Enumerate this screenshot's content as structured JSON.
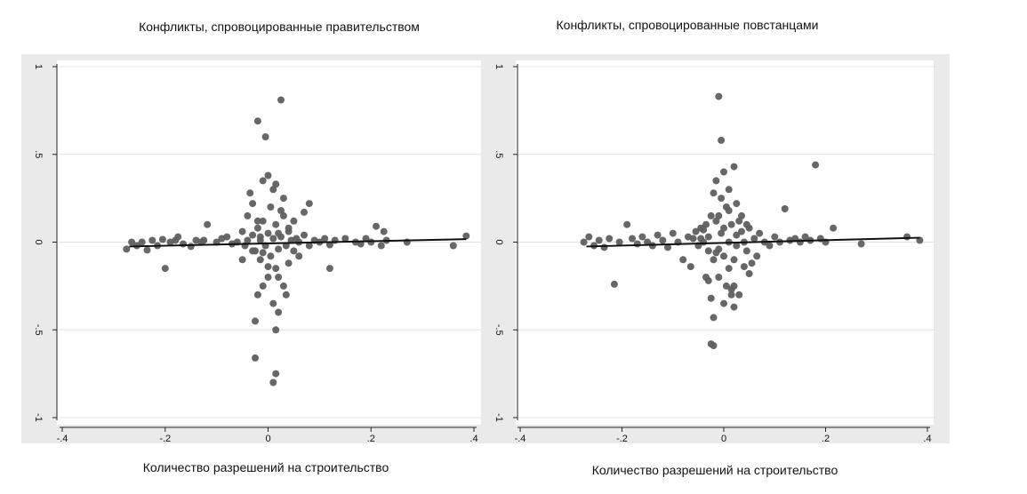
{
  "chart_data": [
    {
      "type": "scatter",
      "title": "Конфликты, спровоцированные правительством",
      "xlabel": "Количество разрешений на строительство",
      "ylabel": "",
      "xlim": [
        -0.4,
        0.4
      ],
      "ylim": [
        -1,
        1
      ],
      "xticks": [
        -0.4,
        -0.2,
        0,
        0.2,
        0.4
      ],
      "xtick_labels": [
        "-.4",
        "-.2",
        "0",
        ".2",
        ".4"
      ],
      "yticks": [
        -1,
        -0.5,
        0,
        0.5,
        1
      ],
      "ytick_labels": [
        "-1",
        "-.5",
        "0",
        ".5",
        "1"
      ],
      "grid": true,
      "fit_line": {
        "x": [
          -0.27,
          0.385
        ],
        "y": [
          -0.025,
          0.017
        ]
      },
      "series": [
        {
          "points": [
            [
              -0.275,
              -0.04
            ],
            [
              -0.265,
              0.0
            ],
            [
              -0.255,
              -0.02
            ],
            [
              -0.245,
              0.0
            ],
            [
              -0.235,
              -0.045
            ],
            [
              -0.225,
              0.01
            ],
            [
              -0.215,
              -0.02
            ],
            [
              -0.205,
              0.015
            ],
            [
              -0.2,
              -0.15
            ],
            [
              -0.19,
              0.0
            ],
            [
              -0.18,
              0.01
            ],
            [
              -0.175,
              0.03
            ],
            [
              -0.165,
              -0.01
            ],
            [
              -0.15,
              -0.025
            ],
            [
              -0.14,
              0.01
            ],
            [
              -0.13,
              0.0
            ],
            [
              -0.125,
              0.01
            ],
            [
              -0.118,
              0.1
            ],
            [
              -0.1,
              0.0
            ],
            [
              -0.09,
              0.02
            ],
            [
              -0.08,
              0.03
            ],
            [
              -0.07,
              -0.01
            ],
            [
              -0.06,
              0.0
            ],
            [
              -0.05,
              0.06
            ],
            [
              -0.045,
              -0.02
            ],
            [
              -0.04,
              0.01
            ],
            [
              -0.03,
              0.04
            ],
            [
              -0.025,
              -0.05
            ],
            [
              -0.02,
              0.08
            ],
            [
              -0.015,
              0.01
            ],
            [
              -0.01,
              0.12
            ],
            [
              -0.005,
              -0.02
            ],
            [
              0.0,
              0.05
            ],
            [
              0.005,
              -0.08
            ],
            [
              0.01,
              0.02
            ],
            [
              0.015,
              0.1
            ],
            [
              0.02,
              -0.04
            ],
            [
              0.025,
              0.03
            ],
            [
              0.03,
              0.15
            ],
            [
              0.035,
              -0.02
            ],
            [
              0.04,
              0.06
            ],
            [
              0.045,
              0.01
            ],
            [
              0.05,
              -0.05
            ],
            [
              0.055,
              0.02
            ],
            [
              0.06,
              0.0
            ],
            [
              0.07,
              0.04
            ],
            [
              0.08,
              -0.02
            ],
            [
              0.09,
              0.01
            ],
            [
              0.1,
              0.0
            ],
            [
              0.11,
              0.02
            ],
            [
              0.12,
              -0.015
            ],
            [
              0.13,
              0.01
            ],
            [
              0.15,
              0.02
            ],
            [
              0.17,
              0.0
            ],
            [
              0.18,
              -0.01
            ],
            [
              0.19,
              0.02
            ],
            [
              0.2,
              0.0
            ],
            [
              0.21,
              0.09
            ],
            [
              0.22,
              -0.02
            ],
            [
              0.225,
              0.06
            ],
            [
              0.23,
              0.01
            ],
            [
              0.27,
              0.0
            ],
            [
              0.36,
              -0.02
            ],
            [
              0.385,
              0.035
            ],
            [
              -0.01,
              -0.25
            ],
            [
              0.0,
              -0.2
            ],
            [
              -0.02,
              -0.3
            ],
            [
              0.01,
              -0.35
            ],
            [
              0.02,
              -0.4
            ],
            [
              -0.025,
              -0.45
            ],
            [
              0.015,
              -0.5
            ],
            [
              -0.025,
              -0.66
            ],
            [
              0.015,
              -0.75
            ],
            [
              0.01,
              -0.8
            ],
            [
              -0.02,
              0.69
            ],
            [
              -0.005,
              0.6
            ],
            [
              0.025,
              0.81
            ],
            [
              -0.01,
              0.35
            ],
            [
              0.01,
              0.3
            ],
            [
              0.0,
              0.38
            ],
            [
              -0.03,
              0.22
            ],
            [
              0.03,
              0.25
            ],
            [
              0.015,
              -0.15
            ],
            [
              -0.015,
              -0.1
            ],
            [
              0.005,
              0.2
            ],
            [
              -0.03,
              -0.05
            ],
            [
              0.04,
              -0.12
            ],
            [
              0.03,
              -0.25
            ],
            [
              -0.04,
              0.15
            ],
            [
              0.02,
              -0.2
            ],
            [
              0.025,
              0.18
            ],
            [
              -0.02,
              0.12
            ],
            [
              0.08,
              0.22
            ],
            [
              0.07,
              0.17
            ],
            [
              0.06,
              -0.08
            ],
            [
              0.12,
              -0.15
            ],
            [
              0.04,
              0.08
            ],
            [
              0.05,
              0.12
            ],
            [
              -0.05,
              -0.1
            ],
            [
              0.015,
              0.33
            ],
            [
              -0.035,
              0.28
            ],
            [
              0.035,
              -0.3
            ],
            [
              -0.01,
              -0.06
            ],
            [
              0.0,
              -0.14
            ],
            [
              0.02,
              0.05
            ],
            [
              -0.015,
              0.03
            ]
          ]
        }
      ]
    },
    {
      "type": "scatter",
      "title": "Конфликты, спровоцированные повстанцами",
      "xlabel": "Количество разрешений на строительство",
      "ylabel": "",
      "xlim": [
        -0.4,
        0.4
      ],
      "ylim": [
        -1,
        1
      ],
      "xticks": [
        -0.4,
        -0.2,
        0,
        0.2,
        0.4
      ],
      "xtick_labels": [
        "-.4",
        "-.2",
        "0",
        ".2",
        ".4"
      ],
      "yticks": [
        -1,
        -0.5,
        0,
        0.5,
        1
      ],
      "ytick_labels": [
        "-1",
        "-.5",
        "0",
        ".5",
        "1"
      ],
      "grid": true,
      "fit_line": {
        "x": [
          -0.27,
          0.385
        ],
        "y": [
          -0.025,
          0.025
        ]
      },
      "series": [
        {
          "points": [
            [
              -0.275,
              0.0
            ],
            [
              -0.265,
              0.03
            ],
            [
              -0.255,
              -0.02
            ],
            [
              -0.245,
              0.01
            ],
            [
              -0.235,
              -0.03
            ],
            [
              -0.225,
              0.02
            ],
            [
              -0.215,
              -0.24
            ],
            [
              -0.205,
              0.0
            ],
            [
              -0.19,
              0.1
            ],
            [
              -0.18,
              0.02
            ],
            [
              -0.17,
              -0.01
            ],
            [
              -0.16,
              0.03
            ],
            [
              -0.15,
              0.0
            ],
            [
              -0.14,
              -0.02
            ],
            [
              -0.13,
              0.04
            ],
            [
              -0.12,
              0.01
            ],
            [
              -0.11,
              -0.03
            ],
            [
              -0.1,
              0.05
            ],
            [
              -0.09,
              0.0
            ],
            [
              -0.08,
              -0.1
            ],
            [
              -0.07,
              0.03
            ],
            [
              -0.065,
              -0.14
            ],
            [
              -0.06,
              0.02
            ],
            [
              -0.055,
              0.06
            ],
            [
              -0.05,
              -0.02
            ],
            [
              -0.045,
              0.08
            ],
            [
              -0.04,
              0.0
            ],
            [
              -0.035,
              0.1
            ],
            [
              -0.03,
              -0.05
            ],
            [
              -0.025,
              0.15
            ],
            [
              -0.02,
              -0.1
            ],
            [
              -0.015,
              0.12
            ],
            [
              -0.01,
              -0.2
            ],
            [
              -0.005,
              0.05
            ],
            [
              0.0,
              -0.08
            ],
            [
              0.005,
              0.2
            ],
            [
              0.01,
              -0.15
            ],
            [
              0.015,
              0.1
            ],
            [
              0.02,
              -0.25
            ],
            [
              0.025,
              0.04
            ],
            [
              0.03,
              -0.3
            ],
            [
              0.035,
              0.15
            ],
            [
              0.04,
              0.0
            ],
            [
              0.045,
              -0.05
            ],
            [
              0.05,
              0.08
            ],
            [
              0.055,
              -0.12
            ],
            [
              0.06,
              0.02
            ],
            [
              0.065,
              -0.08
            ],
            [
              0.07,
              0.05
            ],
            [
              0.08,
              0.0
            ],
            [
              0.09,
              -0.02
            ],
            [
              0.1,
              0.03
            ],
            [
              0.11,
              0.0
            ],
            [
              0.12,
              0.19
            ],
            [
              0.13,
              0.01
            ],
            [
              0.14,
              0.02
            ],
            [
              0.15,
              0.0
            ],
            [
              0.16,
              0.03
            ],
            [
              0.17,
              0.01
            ],
            [
              0.18,
              0.44
            ],
            [
              0.19,
              0.02
            ],
            [
              0.2,
              0.0
            ],
            [
              0.215,
              0.08
            ],
            [
              0.27,
              -0.01
            ],
            [
              0.36,
              0.03
            ],
            [
              0.385,
              0.01
            ],
            [
              -0.01,
              0.83
            ],
            [
              -0.005,
              0.58
            ],
            [
              0.02,
              0.43
            ],
            [
              0.0,
              0.4
            ],
            [
              -0.015,
              0.35
            ],
            [
              0.01,
              0.3
            ],
            [
              -0.02,
              0.28
            ],
            [
              0.025,
              0.22
            ],
            [
              -0.025,
              -0.32
            ],
            [
              0.02,
              -0.37
            ],
            [
              -0.02,
              -0.43
            ],
            [
              -0.025,
              -0.58
            ],
            [
              -0.02,
              -0.59
            ],
            [
              0.0,
              -0.35
            ],
            [
              0.015,
              -0.27
            ],
            [
              -0.03,
              -0.22
            ],
            [
              0.01,
              0.18
            ],
            [
              -0.01,
              0.15
            ],
            [
              0.03,
              0.12
            ],
            [
              -0.04,
              0.07
            ],
            [
              0.04,
              -0.14
            ],
            [
              -0.015,
              -0.06
            ],
            [
              0.02,
              -0.1
            ],
            [
              0.0,
              0.08
            ],
            [
              0.05,
              -0.18
            ],
            [
              -0.035,
              -0.2
            ],
            [
              0.025,
              -0.02
            ],
            [
              -0.005,
              0.25
            ],
            [
              0.015,
              -0.3
            ],
            [
              0.005,
              -0.25
            ],
            [
              -0.03,
              0.03
            ],
            [
              0.035,
              0.06
            ],
            [
              0.01,
              0.0
            ],
            [
              -0.01,
              -0.04
            ],
            [
              0.045,
              0.1
            ],
            [
              -0.045,
              0.02
            ]
          ]
        }
      ]
    }
  ]
}
